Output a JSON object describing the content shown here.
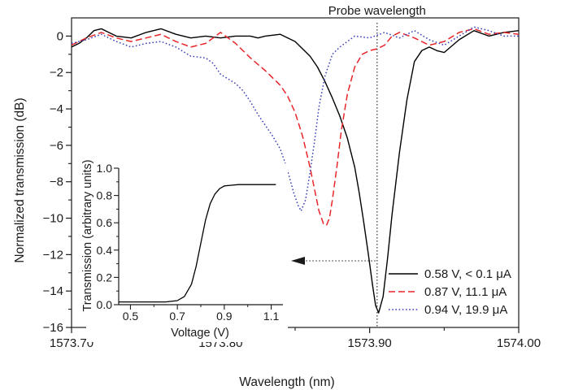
{
  "chart_data": [
    {
      "type": "line",
      "title": "",
      "xlabel": "Wavelength (nm)",
      "ylabel": "Normalized transmission (dB)",
      "xlim": [
        1573.7,
        1574.0
      ],
      "ylim": [
        -16,
        1
      ],
      "x_ticks": [
        1573.7,
        1573.8,
        1573.9,
        1574.0
      ],
      "x_tick_labels": [
        "1573.70",
        "1573.80",
        "1573.90",
        "1574.00"
      ],
      "y_ticks": [
        0,
        -2,
        -4,
        -6,
        -8,
        -10,
        -12,
        -14,
        -16
      ],
      "y_tick_labels": [
        "0",
        "−2",
        "−4",
        "−6",
        "−8",
        "−10",
        "−12",
        "−14",
        "−16"
      ],
      "legend_position": "bottom-right",
      "annotation": {
        "label": "Probe wavelength",
        "x": 1573.905
      },
      "series": [
        {
          "name": "0.58 V, < 0.1 μA",
          "color": "#000000",
          "style": "solid",
          "x": [
            1573.7,
            1573.705,
            1573.71,
            1573.715,
            1573.72,
            1573.725,
            1573.73,
            1573.74,
            1573.75,
            1573.76,
            1573.77,
            1573.78,
            1573.79,
            1573.8,
            1573.81,
            1573.82,
            1573.825,
            1573.83,
            1573.84,
            1573.85,
            1573.86,
            1573.865,
            1573.87,
            1573.875,
            1573.88,
            1573.885,
            1573.89,
            1573.893,
            1573.896,
            1573.899,
            1573.902,
            1573.904,
            1573.906,
            1573.909,
            1573.912,
            1573.915,
            1573.92,
            1573.925,
            1573.93,
            1573.935,
            1573.94,
            1573.945,
            1573.95,
            1573.96,
            1573.97,
            1573.98,
            1573.99,
            1574.0
          ],
          "y": [
            -0.6,
            -0.4,
            -0.1,
            0.3,
            0.4,
            0.2,
            0.0,
            -0.1,
            0.2,
            0.4,
            0.1,
            -0.1,
            0.0,
            -0.1,
            0.0,
            0.0,
            -0.1,
            0.0,
            0.1,
            -0.3,
            -1.1,
            -1.7,
            -2.5,
            -3.4,
            -4.4,
            -5.6,
            -7.2,
            -8.6,
            -10.2,
            -11.9,
            -13.7,
            -14.8,
            -15.2,
            -14.3,
            -12.2,
            -9.8,
            -6.4,
            -3.5,
            -1.4,
            -0.8,
            -0.6,
            -0.8,
            -0.9,
            -0.2,
            0.3,
            0.0,
            0.2,
            0.3
          ]
        },
        {
          "name": "0.87 V, 11.1 μA",
          "color": "#e8262a",
          "style": "dashed",
          "x": [
            1573.7,
            1573.71,
            1573.72,
            1573.73,
            1573.74,
            1573.75,
            1573.76,
            1573.77,
            1573.78,
            1573.79,
            1573.8,
            1573.81,
            1573.82,
            1573.83,
            1573.84,
            1573.845,
            1573.85,
            1573.855,
            1573.86,
            1573.863,
            1573.866,
            1573.869,
            1573.871,
            1573.873,
            1573.875,
            1573.878,
            1573.881,
            1573.885,
            1573.89,
            1573.895,
            1573.9,
            1573.905,
            1573.91,
            1573.915,
            1573.92,
            1573.93,
            1573.94,
            1573.95,
            1573.96,
            1573.97,
            1573.98,
            1573.99,
            1574.0
          ],
          "y": [
            -0.5,
            -0.1,
            0.2,
            -0.1,
            -0.3,
            -0.1,
            0.1,
            -0.3,
            -0.6,
            -0.4,
            0.2,
            -0.4,
            -1.2,
            -1.9,
            -2.7,
            -3.3,
            -4.2,
            -5.5,
            -7.2,
            -8.4,
            -9.6,
            -10.3,
            -10.4,
            -10.0,
            -9.0,
            -7.2,
            -5.2,
            -3.2,
            -1.7,
            -1.0,
            -0.8,
            -0.7,
            -0.5,
            0.0,
            0.2,
            -0.1,
            -0.5,
            -0.3,
            0.2,
            0.4,
            0.1,
            0.2,
            0.1
          ]
        },
        {
          "name": "0.94 V, 19.9 μA",
          "color": "#3a3fb5",
          "style": "dotted",
          "x": [
            1573.7,
            1573.71,
            1573.72,
            1573.73,
            1573.74,
            1573.75,
            1573.76,
            1573.77,
            1573.78,
            1573.79,
            1573.795,
            1573.8,
            1573.81,
            1573.815,
            1573.82,
            1573.825,
            1573.83,
            1573.835,
            1573.84,
            1573.843,
            1573.846,
            1573.849,
            1573.852,
            1573.854,
            1573.857,
            1573.86,
            1573.863,
            1573.866,
            1573.87,
            1573.875,
            1573.88,
            1573.885,
            1573.89,
            1573.9,
            1573.91,
            1573.92,
            1573.93,
            1573.94,
            1573.95,
            1573.96,
            1573.97,
            1573.98,
            1573.99,
            1574.0
          ],
          "y": [
            -0.4,
            -0.2,
            0.1,
            -0.3,
            -0.6,
            -0.4,
            -0.3,
            -0.6,
            -1.1,
            -1.2,
            -1.5,
            -2.1,
            -2.6,
            -3.0,
            -3.6,
            -4.3,
            -4.9,
            -5.5,
            -6.2,
            -6.9,
            -7.7,
            -8.6,
            -9.3,
            -9.6,
            -9.0,
            -7.5,
            -5.8,
            -3.9,
            -2.2,
            -1.0,
            -0.6,
            -0.3,
            0.0,
            -0.1,
            0.2,
            -0.1,
            0.3,
            -0.2,
            -0.5,
            0.0,
            0.5,
            0.3,
            0.0,
            0.0
          ]
        }
      ]
    },
    {
      "type": "line",
      "title": "",
      "xlabel": "Voltage (V)",
      "ylabel": "Transmission (arbitrary units)",
      "xlim": [
        0.45,
        1.15
      ],
      "ylim": [
        0.0,
        1.0
      ],
      "x_ticks": [
        0.5,
        0.7,
        0.9,
        1.1
      ],
      "x_tick_labels": [
        "0.5",
        "0.7",
        "0.9",
        "1.1"
      ],
      "y_ticks": [
        0.0,
        0.2,
        0.4,
        0.6,
        0.8,
        1.0
      ],
      "y_tick_labels": [
        "0.0",
        "0.2",
        "0.4",
        "0.6",
        "0.8",
        "1.0"
      ],
      "series": [
        {
          "color": "#000000",
          "style": "solid",
          "x": [
            0.45,
            0.55,
            0.65,
            0.7,
            0.73,
            0.76,
            0.78,
            0.8,
            0.82,
            0.84,
            0.86,
            0.88,
            0.9,
            0.93,
            0.96,
            1.0,
            1.05,
            1.12
          ],
          "y": [
            0.02,
            0.02,
            0.02,
            0.03,
            0.06,
            0.15,
            0.28,
            0.45,
            0.62,
            0.74,
            0.81,
            0.85,
            0.87,
            0.875,
            0.88,
            0.88,
            0.88,
            0.88
          ]
        }
      ]
    }
  ]
}
